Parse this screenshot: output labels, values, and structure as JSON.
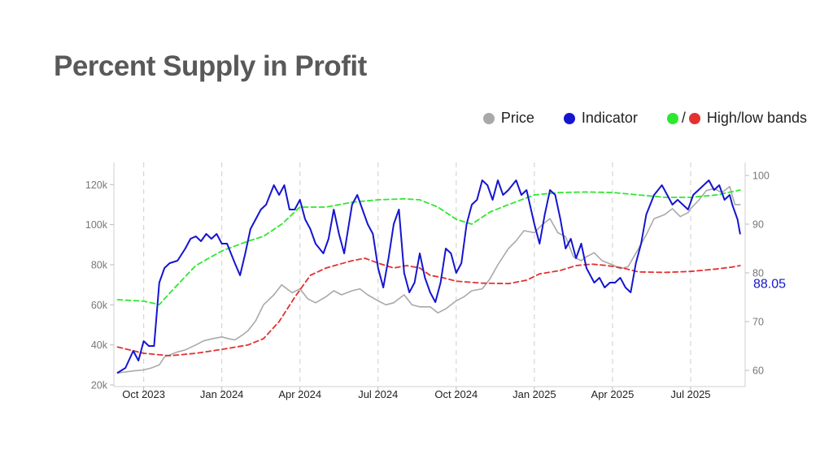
{
  "title": "Percent Supply in Profit",
  "legend": {
    "price": "Price",
    "indicator": "Indicator",
    "bands_slash": "/",
    "bands": "High/low bands"
  },
  "colors": {
    "price": "#a9a9a9",
    "indicator": "#1515d0",
    "high_band": "#2ee82e",
    "low_band": "#e53030",
    "title": "#595959"
  },
  "chart_data": {
    "type": "line",
    "x_ticks": [
      {
        "t": 1,
        "label": "Oct 2023"
      },
      {
        "t": 4,
        "label": "Jan 2024"
      },
      {
        "t": 7,
        "label": "Apr 2024"
      },
      {
        "t": 10,
        "label": "Jul 2024"
      },
      {
        "t": 13,
        "label": "Oct 2024"
      },
      {
        "t": 16,
        "label": "Jan 2025"
      },
      {
        "t": 19,
        "label": "Apr 2025"
      },
      {
        "t": 22,
        "label": "Jul 2025"
      }
    ],
    "x_range": [
      "Sep 2023",
      "Aug 2025"
    ],
    "y_left": {
      "ticks": [
        "20k",
        "40k",
        "60k",
        "80k",
        "100k",
        "120k"
      ],
      "range": [
        20000,
        127000
      ]
    },
    "y_right": {
      "ticks": [
        "60",
        "70",
        "80",
        "90",
        "100"
      ],
      "range": [
        57,
        101
      ]
    },
    "last_value_label": "88.05",
    "grid": "vertical dashed",
    "series": [
      {
        "name": "Price",
        "axis": "left",
        "points": [
          [
            0,
            26000
          ],
          [
            0.3,
            26500
          ],
          [
            0.6,
            27000
          ],
          [
            1,
            27500
          ],
          [
            1.3,
            28500
          ],
          [
            1.6,
            30000
          ],
          [
            1.8,
            34000
          ],
          [
            2,
            35000
          ],
          [
            2.3,
            36500
          ],
          [
            2.6,
            37500
          ],
          [
            3,
            40000
          ],
          [
            3.3,
            42000
          ],
          [
            3.6,
            43000
          ],
          [
            4,
            44000
          ],
          [
            4.3,
            43000
          ],
          [
            4.5,
            42500
          ],
          [
            4.8,
            45000
          ],
          [
            5,
            47000
          ],
          [
            5.3,
            52000
          ],
          [
            5.6,
            60000
          ],
          [
            6,
            65000
          ],
          [
            6.3,
            70000
          ],
          [
            6.5,
            68000
          ],
          [
            6.7,
            66000
          ],
          [
            7,
            68000
          ],
          [
            7.3,
            63000
          ],
          [
            7.6,
            61000
          ],
          [
            8,
            64000
          ],
          [
            8.3,
            67000
          ],
          [
            8.6,
            65000
          ],
          [
            9,
            67000
          ],
          [
            9.3,
            68000
          ],
          [
            9.6,
            65000
          ],
          [
            10,
            62000
          ],
          [
            10.3,
            60000
          ],
          [
            10.6,
            61000
          ],
          [
            11,
            65000
          ],
          [
            11.3,
            60000
          ],
          [
            11.6,
            59000
          ],
          [
            12,
            59000
          ],
          [
            12.3,
            56000
          ],
          [
            12.6,
            58000
          ],
          [
            13,
            62000
          ],
          [
            13.3,
            64000
          ],
          [
            13.6,
            67000
          ],
          [
            14,
            68000
          ],
          [
            14.3,
            73000
          ],
          [
            14.6,
            80000
          ],
          [
            15,
            88000
          ],
          [
            15.3,
            92000
          ],
          [
            15.6,
            97000
          ],
          [
            16,
            96000
          ],
          [
            16.3,
            100000
          ],
          [
            16.6,
            103000
          ],
          [
            16.9,
            96000
          ],
          [
            17.2,
            94000
          ],
          [
            17.5,
            84000
          ],
          [
            17.8,
            82000
          ],
          [
            18,
            84000
          ],
          [
            18.3,
            86000
          ],
          [
            18.6,
            82000
          ],
          [
            19,
            80000
          ],
          [
            19.3,
            78000
          ],
          [
            19.6,
            79000
          ],
          [
            20,
            88000
          ],
          [
            20.3,
            95000
          ],
          [
            20.6,
            103000
          ],
          [
            21,
            105000
          ],
          [
            21.3,
            108000
          ],
          [
            21.6,
            104000
          ],
          [
            21.9,
            106000
          ],
          [
            22,
            108000
          ],
          [
            22.3,
            112000
          ],
          [
            22.6,
            117000
          ],
          [
            22.9,
            118000
          ],
          [
            23.2,
            116000
          ],
          [
            23.5,
            119000
          ],
          [
            23.7,
            110000
          ],
          [
            23.9,
            110000
          ]
        ]
      },
      {
        "name": "Indicator",
        "axis": "right",
        "points": [
          [
            0,
            59.5
          ],
          [
            0.3,
            60.5
          ],
          [
            0.6,
            64
          ],
          [
            0.8,
            62
          ],
          [
            1,
            66
          ],
          [
            1.2,
            65
          ],
          [
            1.4,
            65
          ],
          [
            1.6,
            78
          ],
          [
            1.8,
            81
          ],
          [
            2,
            82
          ],
          [
            2.3,
            82.5
          ],
          [
            2.6,
            85
          ],
          [
            2.8,
            87
          ],
          [
            3,
            87.5
          ],
          [
            3.2,
            86.5
          ],
          [
            3.4,
            88
          ],
          [
            3.6,
            87
          ],
          [
            3.8,
            88
          ],
          [
            4,
            86
          ],
          [
            4.2,
            86
          ],
          [
            4.5,
            82
          ],
          [
            4.7,
            79.5
          ],
          [
            4.9,
            84
          ],
          [
            5.1,
            89
          ],
          [
            5.3,
            91
          ],
          [
            5.5,
            93
          ],
          [
            5.7,
            94
          ],
          [
            6,
            98
          ],
          [
            6.2,
            96
          ],
          [
            6.4,
            98
          ],
          [
            6.6,
            93
          ],
          [
            6.8,
            93
          ],
          [
            7,
            95
          ],
          [
            7.2,
            91
          ],
          [
            7.4,
            89
          ],
          [
            7.6,
            86
          ],
          [
            7.9,
            84
          ],
          [
            8.1,
            87
          ],
          [
            8.3,
            93
          ],
          [
            8.5,
            88
          ],
          [
            8.7,
            84
          ],
          [
            9,
            94
          ],
          [
            9.2,
            96
          ],
          [
            9.4,
            93
          ],
          [
            9.6,
            90
          ],
          [
            9.8,
            88
          ],
          [
            10,
            81
          ],
          [
            10.2,
            77
          ],
          [
            10.4,
            83
          ],
          [
            10.6,
            90
          ],
          [
            10.8,
            93
          ],
          [
            11,
            80
          ],
          [
            11.2,
            76
          ],
          [
            11.4,
            78
          ],
          [
            11.6,
            84
          ],
          [
            11.8,
            79
          ],
          [
            12,
            76
          ],
          [
            12.2,
            74
          ],
          [
            12.4,
            78
          ],
          [
            12.6,
            85
          ],
          [
            12.8,
            84
          ],
          [
            13,
            80
          ],
          [
            13.2,
            82
          ],
          [
            13.4,
            90
          ],
          [
            13.6,
            94
          ],
          [
            13.8,
            95
          ],
          [
            14,
            99
          ],
          [
            14.2,
            98
          ],
          [
            14.4,
            95
          ],
          [
            14.6,
            99
          ],
          [
            14.8,
            96
          ],
          [
            15,
            97
          ],
          [
            15.3,
            99
          ],
          [
            15.5,
            96
          ],
          [
            15.7,
            97
          ],
          [
            16,
            90
          ],
          [
            16.2,
            86
          ],
          [
            16.4,
            92
          ],
          [
            16.6,
            97
          ],
          [
            16.8,
            96
          ],
          [
            17,
            91
          ],
          [
            17.2,
            85
          ],
          [
            17.4,
            87
          ],
          [
            17.6,
            83
          ],
          [
            17.8,
            86
          ],
          [
            18,
            81
          ],
          [
            18.3,
            78
          ],
          [
            18.5,
            79
          ],
          [
            18.7,
            77
          ],
          [
            18.9,
            78
          ],
          [
            19.1,
            78
          ],
          [
            19.3,
            79
          ],
          [
            19.5,
            77
          ],
          [
            19.7,
            76
          ],
          [
            19.9,
            82
          ],
          [
            20.1,
            86
          ],
          [
            20.3,
            92
          ],
          [
            20.6,
            96
          ],
          [
            20.9,
            98
          ],
          [
            21.1,
            96
          ],
          [
            21.3,
            94
          ],
          [
            21.5,
            95
          ],
          [
            21.7,
            94
          ],
          [
            21.9,
            93
          ],
          [
            22.1,
            96
          ],
          [
            22.3,
            97
          ],
          [
            22.5,
            98
          ],
          [
            22.7,
            99
          ],
          [
            22.9,
            97
          ],
          [
            23.1,
            98
          ],
          [
            23.3,
            95
          ],
          [
            23.5,
            96
          ],
          [
            23.6,
            94
          ],
          [
            23.8,
            91
          ],
          [
            23.9,
            88.05
          ]
        ]
      },
      {
        "name": "High band",
        "axis": "right",
        "points": [
          [
            0,
            74.5
          ],
          [
            1,
            74.2
          ],
          [
            1.6,
            73.5
          ],
          [
            2.2,
            77
          ],
          [
            3,
            81.5
          ],
          [
            4,
            84.5
          ],
          [
            5,
            86.5
          ],
          [
            5.6,
            87.5
          ],
          [
            6.3,
            90
          ],
          [
            7,
            93.5
          ],
          [
            8,
            93.5
          ],
          [
            9,
            94.5
          ],
          [
            10,
            95
          ],
          [
            11,
            95.2
          ],
          [
            11.6,
            95
          ],
          [
            12.3,
            93.5
          ],
          [
            13,
            91
          ],
          [
            13.6,
            90
          ],
          [
            14.3,
            92.5
          ],
          [
            15,
            94
          ],
          [
            16,
            96
          ],
          [
            17,
            96.5
          ],
          [
            18,
            96.6
          ],
          [
            19,
            96.5
          ],
          [
            20,
            96
          ],
          [
            21,
            95.5
          ],
          [
            22,
            95.5
          ],
          [
            23,
            96
          ],
          [
            23.9,
            97
          ]
        ]
      },
      {
        "name": "Low band",
        "axis": "right",
        "points": [
          [
            0,
            64.8
          ],
          [
            1,
            63.5
          ],
          [
            2,
            63
          ],
          [
            3,
            63.5
          ],
          [
            4,
            64.3
          ],
          [
            5,
            65.2
          ],
          [
            5.6,
            66.5
          ],
          [
            6.2,
            70
          ],
          [
            6.8,
            75
          ],
          [
            7.4,
            79.5
          ],
          [
            8,
            81
          ],
          [
            9,
            82.5
          ],
          [
            9.5,
            83
          ],
          [
            10,
            82
          ],
          [
            10.6,
            81
          ],
          [
            11.1,
            81.5
          ],
          [
            11.6,
            81
          ],
          [
            12,
            79.5
          ],
          [
            12.5,
            79
          ],
          [
            13,
            78.3
          ],
          [
            14,
            77.9
          ],
          [
            15,
            77.8
          ],
          [
            15.7,
            78.5
          ],
          [
            16.2,
            79.8
          ],
          [
            17,
            80.5
          ],
          [
            17.6,
            81.5
          ],
          [
            18.2,
            81.8
          ],
          [
            18.8,
            81.5
          ],
          [
            19.4,
            81
          ],
          [
            20,
            80.2
          ],
          [
            21,
            80.1
          ],
          [
            22,
            80.3
          ],
          [
            23,
            80.8
          ],
          [
            23.6,
            81.2
          ],
          [
            23.9,
            81.5
          ]
        ]
      }
    ]
  }
}
